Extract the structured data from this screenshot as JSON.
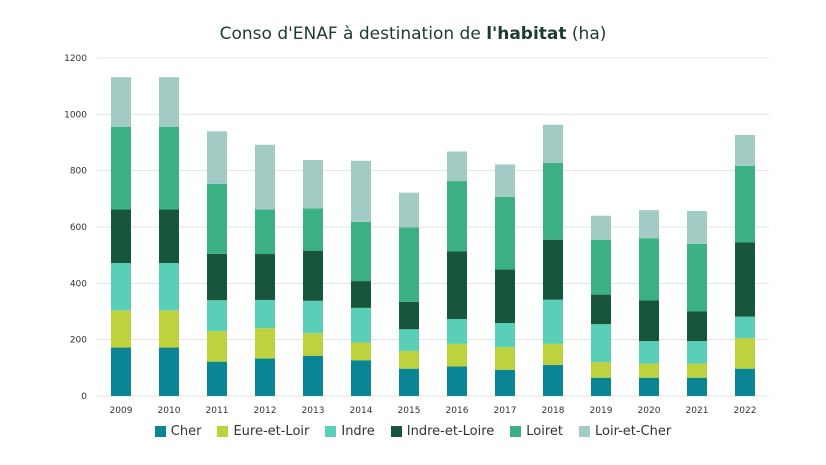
{
  "chart_data": {
    "type": "bar",
    "stacked": true,
    "title_pre": "Conso d'ENAF à destination de ",
    "title_bold": "l'habitat",
    "title_post": " (ha)",
    "categories": [
      "2009",
      "2010",
      "2011",
      "2012",
      "2013",
      "2014",
      "2015",
      "2016",
      "2017",
      "2018",
      "2019",
      "2020",
      "2021",
      "2022"
    ],
    "ylim": [
      0,
      1200
    ],
    "yticks": [
      0,
      200,
      400,
      600,
      800,
      1000,
      1200
    ],
    "series": [
      {
        "name": "Cher",
        "color": "#0a8596",
        "values": [
          172,
          172,
          122,
          133,
          143,
          127,
          97,
          105,
          93,
          110,
          65,
          65,
          65,
          97
        ]
      },
      {
        "name": "Eure-et-Loir",
        "color": "#bdd23c",
        "values": [
          132,
          132,
          108,
          108,
          80,
          63,
          63,
          80,
          80,
          75,
          55,
          50,
          50,
          108
        ]
      },
      {
        "name": "Indre",
        "color": "#5acfb8",
        "values": [
          168,
          168,
          110,
          100,
          115,
          123,
          77,
          88,
          86,
          157,
          135,
          80,
          80,
          77
        ]
      },
      {
        "name": "Indre-et-Loire",
        "color": "#17553d",
        "values": [
          190,
          190,
          165,
          163,
          178,
          95,
          97,
          240,
          190,
          213,
          105,
          145,
          105,
          263
        ]
      },
      {
        "name": "Loiret",
        "color": "#3bb084",
        "values": [
          293,
          293,
          248,
          158,
          150,
          210,
          265,
          250,
          258,
          273,
          195,
          220,
          240,
          272
        ]
      },
      {
        "name": "Loir-et-Cher",
        "color": "#a2cbc4",
        "values": [
          177,
          177,
          187,
          230,
          172,
          217,
          123,
          105,
          115,
          135,
          85,
          100,
          117,
          110
        ]
      }
    ]
  }
}
